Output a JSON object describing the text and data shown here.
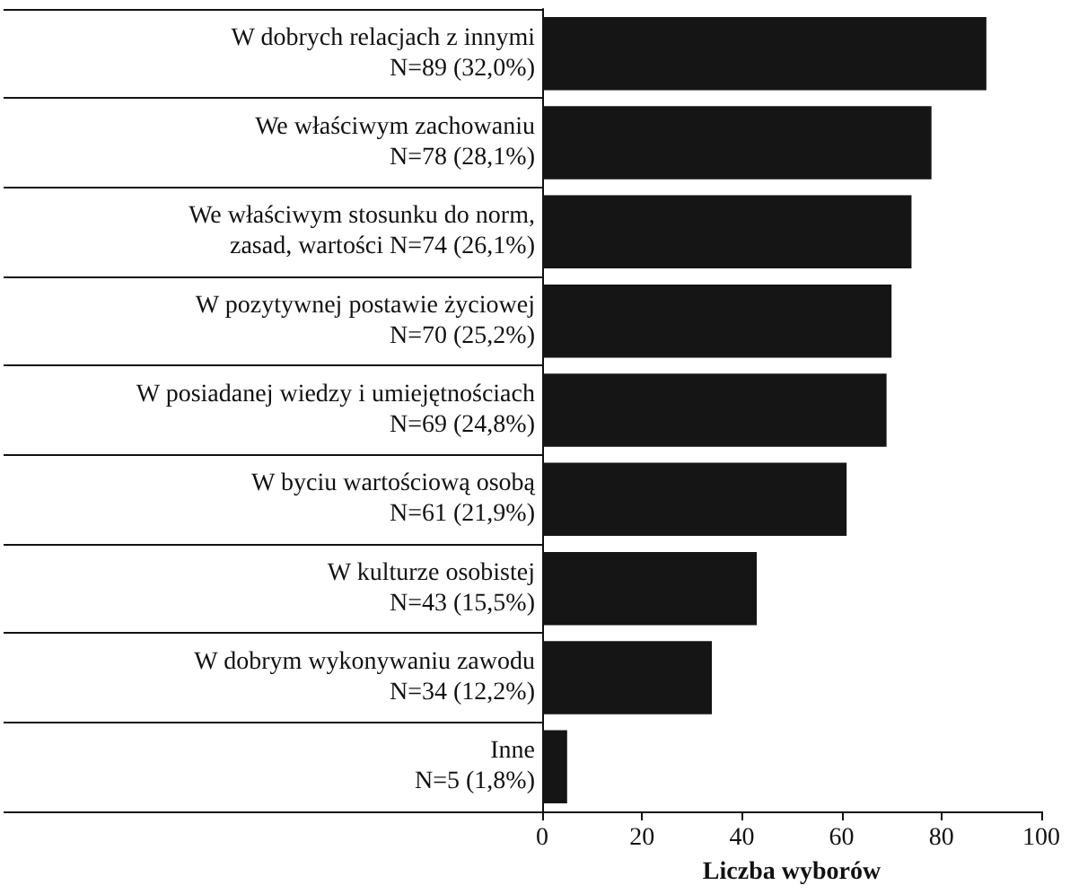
{
  "chart_data": {
    "type": "bar",
    "orientation": "horizontal",
    "xlabel": "Liczba wyborów",
    "categories": [
      "W dobrych relacjach z innymi\nN=89 (32,0%)",
      "We właściwym zachowaniu\nN=78 (28,1%)",
      "We właściwym stosunku do norm,\nzasad, wartości N=74 (26,1%)",
      "W pozytywnej postawie życiowej\nN=70 (25,2%)",
      "W posiadanej wiedzy i umiejętnościach\nN=69 (24,8%)",
      "W byciu wartościową osobą\nN=61 (21,9%)",
      "W kulturze osobistej\nN=43 (15,5%)",
      "W dobrym wykonywaniu zawodu\nN=34 (12,2%)",
      "Inne\nN=5 (1,8%)"
    ],
    "values": [
      89,
      78,
      74,
      70,
      69,
      61,
      43,
      34,
      5
    ],
    "color": "#151515",
    "xlim": [
      0,
      100
    ],
    "xticks": [
      0,
      20,
      40,
      60,
      80,
      100
    ],
    "grid": false
  }
}
